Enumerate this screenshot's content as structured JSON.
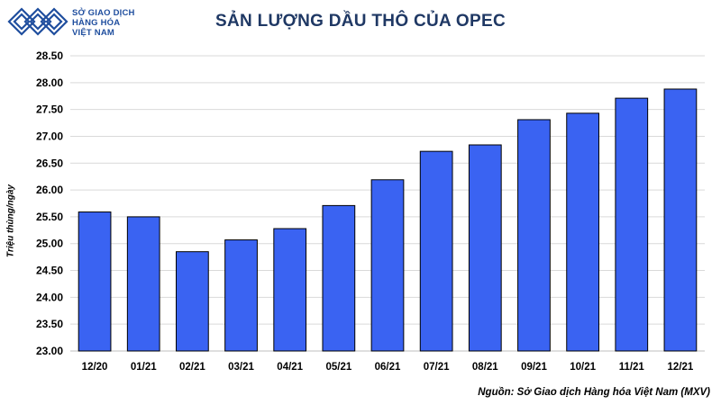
{
  "logo": {
    "line1": "SỞ GIAO DỊCH",
    "line2": "HÀNG HÓA",
    "line3": "VIỆT NAM",
    "color": "#1f4e9e"
  },
  "source": "Nguồn: Sở Giao dịch Hàng hóa Việt Nam (MXV)",
  "chart_data": {
    "type": "bar",
    "title": "SẢN LƯỢNG DẦU THÔ CỦA OPEC",
    "xlabel": "",
    "ylabel": "Triệu thùng/ngày",
    "categories": [
      "12/20",
      "01/21",
      "02/21",
      "03/21",
      "04/21",
      "05/21",
      "06/21",
      "07/21",
      "08/21",
      "09/21",
      "10/21",
      "11/21",
      "12/21"
    ],
    "values": [
      25.59,
      25.5,
      24.85,
      25.07,
      25.28,
      25.71,
      26.19,
      26.72,
      26.84,
      27.31,
      27.43,
      27.71,
      27.88
    ],
    "ylim": [
      23.0,
      28.5
    ],
    "yticks": [
      "23.00",
      "23.50",
      "24.00",
      "24.50",
      "25.00",
      "25.50",
      "26.00",
      "26.50",
      "27.00",
      "27.50",
      "28.00",
      "28.50"
    ],
    "grid": true,
    "bar_color": "#3a63f2",
    "bar_stroke": "#000000"
  }
}
